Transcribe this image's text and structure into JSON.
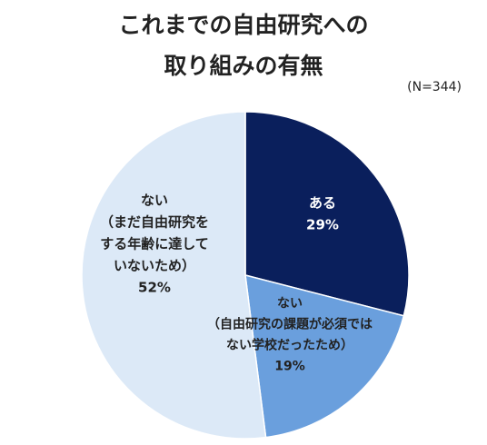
{
  "title_line1": "これまでの自由研究への",
  "title_line2": "取り組みの有無",
  "sample_size": "(N=344)",
  "chart_data": {
    "type": "pie",
    "title": "これまでの自由研究への取り組みの有無",
    "start": "12 o'clock",
    "direction": "clockwise",
    "slices": [
      {
        "lines": [
          "ある"
        ],
        "value": 29,
        "value_label": "29%",
        "color": "#0a1f5c",
        "text_color": "#ffffff"
      },
      {
        "lines": [
          "ない",
          "（自由研究の課題が必須では",
          "ない学校だったため）"
        ],
        "value": 19,
        "value_label": "19%",
        "color": "#6a9fdd",
        "text_color": "#222222"
      },
      {
        "lines": [
          "ない",
          "（まだ自由研究を",
          "する年齢に達して",
          "いないため）"
        ],
        "value": 52,
        "value_label": "52%",
        "color": "#dce9f7",
        "text_color": "#222222"
      }
    ]
  }
}
